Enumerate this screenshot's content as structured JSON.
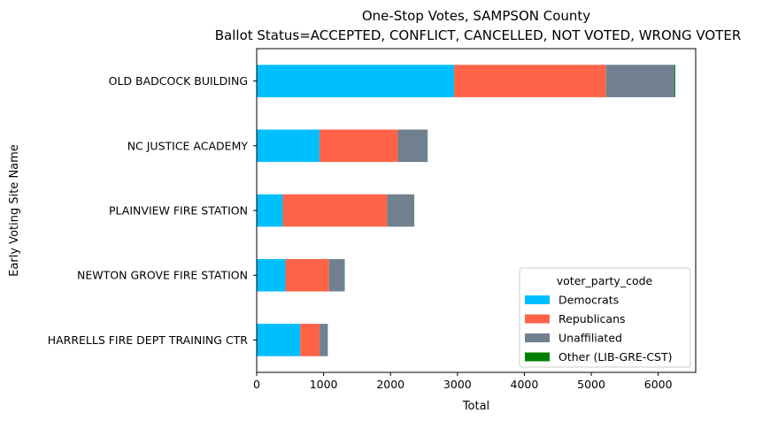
{
  "chart_data": {
    "type": "bar",
    "orientation": "horizontal",
    "stacked": true,
    "title": "One-Stop Votes, SAMPSON County",
    "subtitle": "Ballot Status=ACCEPTED, CONFLICT, CANCELLED, NOT VOTED, WRONG VOTER",
    "xlabel": "Total",
    "ylabel": "Early Voting Site Name",
    "xlim": [
      0,
      6560
    ],
    "xticks": [
      0,
      1000,
      2000,
      3000,
      4000,
      5000,
      6000
    ],
    "grid": false,
    "legend_title": "voter_party_code",
    "legend_position": "lower-right",
    "categories": [
      "OLD BADCOCK BUILDING",
      "NC JUSTICE ACADEMY",
      "PLAINVIEW FIRE STATION",
      "NEWTON GROVE FIRE STATION",
      "HARRELLS FIRE DEPT TRAINING CTR"
    ],
    "series": [
      {
        "name": "Democrats",
        "color": "#00bfff",
        "values": [
          2950,
          940,
          390,
          430,
          650
        ]
      },
      {
        "name": "Republicans",
        "color": "#ff6347",
        "values": [
          2270,
          1170,
          1560,
          650,
          290
        ]
      },
      {
        "name": "Unaffiliated",
        "color": "#708090",
        "values": [
          1020,
          440,
          400,
          230,
          120
        ]
      },
      {
        "name": "Other (LIB-GRE-CST)",
        "color": "#008000",
        "values": [
          15,
          5,
          5,
          5,
          3
        ]
      }
    ]
  }
}
